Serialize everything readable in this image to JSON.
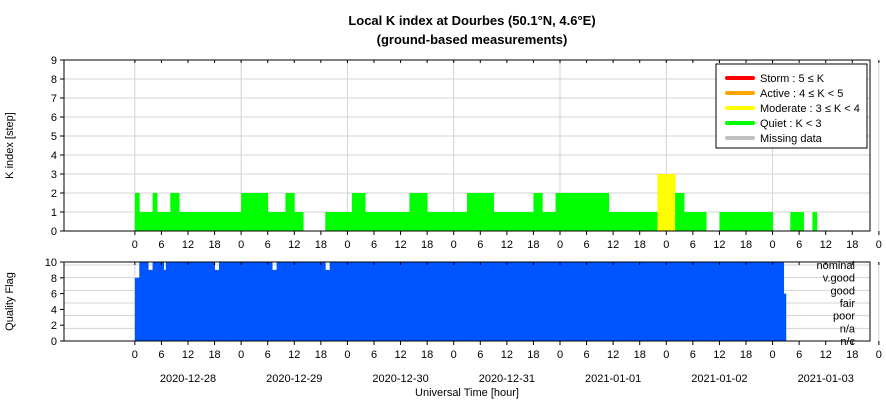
{
  "chart_data": [
    {
      "type": "bar",
      "title": "Local K index at Dourbes (50.1°N, 4.6°E)",
      "subtitle": "(ground-based measurements)",
      "ylabel": "K index [step]",
      "ylim": [
        0,
        9
      ],
      "yticks": [
        "0",
        "1",
        "2",
        "3",
        "4",
        "5",
        "6",
        "7",
        "8",
        "9"
      ],
      "x_range_hours": [
        -16,
        166
      ],
      "x_start": "2020-12-27T16:00",
      "xtick_labels": [
        "0",
        "6",
        "12",
        "18",
        "0",
        "6",
        "12",
        "18",
        "0",
        "6",
        "12",
        "18",
        "0",
        "6",
        "12",
        "18",
        "0",
        "6",
        "12",
        "18",
        "0",
        "6",
        "12",
        "18",
        "0",
        "6",
        "12",
        "18",
        "0"
      ],
      "grid": true,
      "legend_position": "top-right",
      "legend": [
        {
          "label": "Storm : 5 ≤ K",
          "color": "#ff0000"
        },
        {
          "label": "Active : 4 ≤ K < 5",
          "color": "#ffa500"
        },
        {
          "label": "Moderate : 3 ≤ K < 4",
          "color": "#ffff00"
        },
        {
          "label": "Quiet : K < 3",
          "color": "#00ff00"
        },
        {
          "label": "Missing data",
          "color": "#c0c0c0"
        }
      ],
      "interval_hours": 1,
      "series": [
        {
          "start": "2020-12-28T00:00",
          "values": [
            2,
            1,
            1,
            1,
            2,
            1,
            1,
            1,
            2,
            2,
            1,
            1,
            1,
            1,
            1,
            1,
            1,
            1,
            1,
            1,
            1,
            1,
            1,
            1,
            2,
            2,
            2,
            2,
            2,
            2,
            1,
            1,
            1,
            1,
            2,
            2,
            1,
            1,
            0,
            0,
            0,
            0,
            0,
            1,
            1,
            1,
            1,
            1,
            1,
            2,
            2,
            2,
            1,
            1,
            1,
            1,
            1,
            1,
            1,
            1,
            1,
            1,
            2,
            2,
            2,
            2,
            1,
            1,
            1,
            1,
            1,
            1,
            1,
            1,
            1,
            2,
            2,
            2,
            2,
            2,
            2,
            1,
            1,
            1,
            1,
            1,
            1,
            1,
            1,
            1,
            2,
            2,
            1,
            1,
            1,
            2,
            2,
            2,
            2,
            2,
            2,
            2,
            2,
            2,
            2,
            2,
            2,
            1,
            1,
            1,
            1,
            1,
            1,
            1,
            1,
            1,
            1,
            1,
            3,
            3,
            3,
            3,
            2,
            2,
            1,
            1,
            1,
            1,
            1,
            0,
            0,
            0,
            1,
            1,
            1,
            1,
            1,
            1,
            1,
            1,
            1,
            1,
            1,
            1,
            0,
            0,
            0,
            0,
            1,
            1,
            1,
            0,
            0,
            1
          ]
        }
      ]
    },
    {
      "type": "bar",
      "ylabel": "Quality Flag",
      "ylim": [
        0,
        10
      ],
      "yticks": [
        "0",
        "2",
        "4",
        "6",
        "8",
        "10"
      ],
      "xlabel": "Universal Time [hour]",
      "quality_levels": [
        "nominal",
        "v.good",
        "good",
        "fair",
        "poor",
        "n/a",
        "n/c"
      ],
      "date_labels": [
        "2020-12-28",
        "2020-12-29",
        "2020-12-30",
        "2020-12-31",
        "2021-01-01",
        "2021-01-02",
        "2021-01-03"
      ],
      "color": "#0055ff",
      "interval_minutes": 30,
      "series": [
        {
          "start": "2020-12-28T00:00",
          "values": [
            8,
            8,
            10,
            10,
            10,
            10,
            9,
            9,
            10,
            10,
            10,
            10,
            10,
            9,
            10,
            10,
            10,
            10,
            10,
            10,
            10,
            10,
            10,
            10,
            10,
            10,
            10,
            10,
            10,
            10,
            10,
            10,
            10,
            10,
            10,
            10,
            9,
            9,
            10,
            10,
            10,
            10,
            10,
            10,
            10,
            10,
            10,
            10,
            10,
            10,
            10,
            10,
            10,
            10,
            10,
            10,
            10,
            10,
            10,
            10,
            10,
            10,
            9,
            9,
            10,
            10,
            10,
            10,
            10,
            10,
            10,
            10,
            10,
            10,
            10,
            10,
            10,
            10,
            10,
            10,
            10,
            10,
            10,
            10,
            10,
            10,
            9,
            9,
            10,
            10,
            10,
            10,
            10,
            10,
            10,
            10,
            10,
            10,
            10,
            10,
            10,
            10,
            10,
            10,
            10,
            10,
            10,
            10,
            10,
            10,
            10,
            10,
            10,
            10,
            10,
            10,
            10,
            10,
            10,
            10,
            10,
            10,
            10,
            10,
            10,
            10,
            10,
            10,
            10,
            10,
            10,
            10,
            10,
            10,
            10,
            10,
            10,
            10,
            10,
            10,
            10,
            10,
            10,
            10,
            10,
            10,
            10,
            10,
            10,
            10,
            10,
            10,
            10,
            10,
            10,
            10,
            10,
            10,
            10,
            10,
            10,
            10,
            10,
            10,
            10,
            10,
            10,
            10,
            10,
            10,
            10,
            10,
            10,
            10,
            10,
            10,
            10,
            10,
            10,
            10,
            10,
            10,
            10,
            10,
            10,
            10,
            10,
            10,
            10,
            10,
            10,
            10,
            10,
            10,
            10,
            10,
            10,
            10,
            10,
            10,
            10,
            10,
            10,
            10,
            10,
            10,
            10,
            10,
            10,
            10,
            10,
            10,
            10,
            10,
            10,
            10,
            10,
            10,
            10,
            10,
            10,
            10,
            10,
            10,
            10,
            10,
            10,
            10,
            10,
            10,
            10,
            10,
            10,
            10,
            10,
            10,
            10,
            10,
            10,
            10,
            10,
            10,
            10,
            10,
            10,
            10,
            10,
            10,
            10,
            10,
            10,
            10,
            10,
            10,
            10,
            10,
            10,
            10,
            10,
            10,
            10,
            10,
            10,
            10,
            10,
            10,
            10,
            10,
            10,
            10,
            10,
            10,
            10,
            10,
            10,
            10,
            10,
            10,
            10,
            10,
            10,
            10,
            10,
            10,
            10,
            10,
            10,
            10,
            10,
            10,
            10,
            10,
            10,
            6
          ]
        }
      ]
    }
  ]
}
